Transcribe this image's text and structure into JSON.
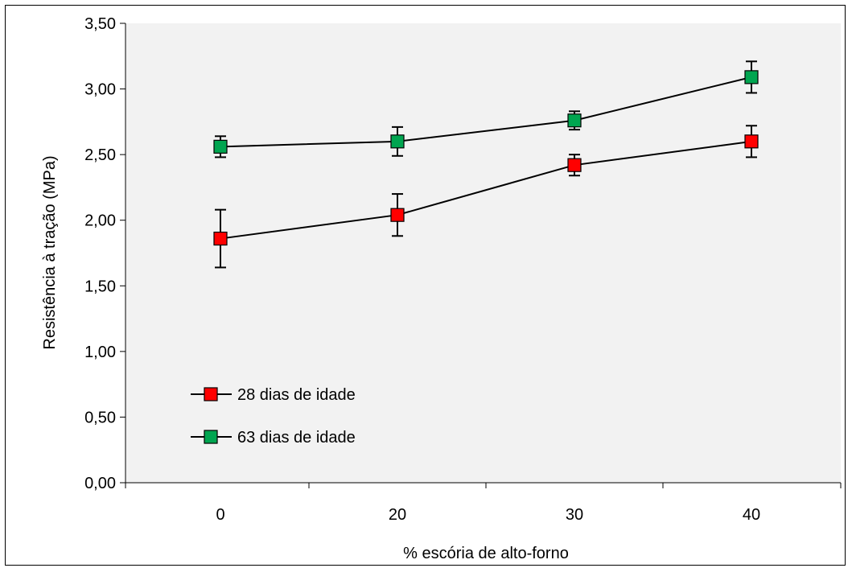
{
  "chart_data": {
    "type": "line",
    "xlabel": "% escória de alto-forno",
    "ylabel": "Resistência à tração (MPa)",
    "categories": [
      "0",
      "20",
      "30",
      "40"
    ],
    "ylim": [
      0,
      3.5
    ],
    "yticks": [
      "0,00",
      "0,50",
      "1,00",
      "1,50",
      "2,00",
      "2,50",
      "3,00",
      "3,50"
    ],
    "grid": false,
    "legend_position": "lower-left",
    "plot_background": "#f2f2f2",
    "series": [
      {
        "name": "28 dias de idade",
        "color": "#ff0000",
        "values": [
          1.86,
          2.04,
          2.42,
          2.6
        ],
        "error": [
          0.22,
          0.16,
          0.08,
          0.12
        ]
      },
      {
        "name": "63 dias de idade",
        "color": "#00a550",
        "values": [
          2.56,
          2.6,
          2.76,
          3.09
        ],
        "error": [
          0.08,
          0.11,
          0.07,
          0.12
        ]
      }
    ]
  }
}
